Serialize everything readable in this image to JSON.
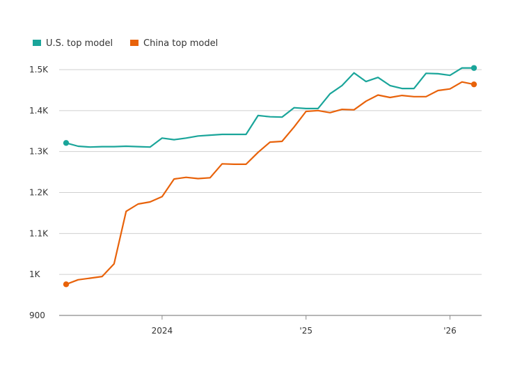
{
  "chart_data": {
    "type": "line",
    "title": "",
    "xlabel": "",
    "ylabel": "",
    "ylim": [
      900,
      1500
    ],
    "xlim": [
      "2023-05",
      "2026-03"
    ],
    "grid": true,
    "legend": "top-left",
    "y_ticks": [
      {
        "value": 1500,
        "label": "1.5K"
      },
      {
        "value": 1400,
        "label": "1.4K"
      },
      {
        "value": 1300,
        "label": "1.3K"
      },
      {
        "value": 1200,
        "label": "1.2K"
      },
      {
        "value": 1100,
        "label": "1.1K"
      },
      {
        "value": 1000,
        "label": "1K"
      },
      {
        "value": 900,
        "label": "900"
      }
    ],
    "x_ticks": [
      {
        "date": "2024-01",
        "label": "2024"
      },
      {
        "date": "2025-01",
        "label": "'25"
      },
      {
        "date": "2026-01",
        "label": "'26"
      }
    ],
    "series": [
      {
        "name": "U.S. top model",
        "color": "#1aa59a",
        "points": [
          [
            "2023-05",
            1321
          ],
          [
            "2023-06",
            1313
          ],
          [
            "2023-07",
            1311
          ],
          [
            "2023-08",
            1312
          ],
          [
            "2023-09",
            1312
          ],
          [
            "2023-10",
            1313
          ],
          [
            "2023-11",
            1312
          ],
          [
            "2023-12",
            1311
          ],
          [
            "2024-01",
            1333
          ],
          [
            "2024-02",
            1329
          ],
          [
            "2024-03",
            1333
          ],
          [
            "2024-04",
            1338
          ],
          [
            "2024-05",
            1340
          ],
          [
            "2024-06",
            1342
          ],
          [
            "2024-07",
            1342
          ],
          [
            "2024-08",
            1342
          ],
          [
            "2024-09",
            1388
          ],
          [
            "2024-10",
            1385
          ],
          [
            "2024-11",
            1384
          ],
          [
            "2024-12",
            1407
          ],
          [
            "2025-01",
            1405
          ],
          [
            "2025-02",
            1405
          ],
          [
            "2025-03",
            1441
          ],
          [
            "2025-04",
            1461
          ],
          [
            "2025-05",
            1492
          ],
          [
            "2025-06",
            1471
          ],
          [
            "2025-07",
            1481
          ],
          [
            "2025-08",
            1461
          ],
          [
            "2025-09",
            1454
          ],
          [
            "2025-10",
            1454
          ],
          [
            "2025-11",
            1491
          ],
          [
            "2025-12",
            1490
          ],
          [
            "2026-01",
            1486
          ],
          [
            "2026-02",
            1504
          ],
          [
            "2026-03",
            1504
          ]
        ]
      },
      {
        "name": "China top model",
        "color": "#e8620a",
        "points": [
          [
            "2023-05",
            976
          ],
          [
            "2023-06",
            987
          ],
          [
            "2023-07",
            991
          ],
          [
            "2023-08",
            995
          ],
          [
            "2023-09",
            1026
          ],
          [
            "2023-10",
            1154
          ],
          [
            "2023-11",
            1172
          ],
          [
            "2023-12",
            1177
          ],
          [
            "2024-01",
            1190
          ],
          [
            "2024-02",
            1233
          ],
          [
            "2024-03",
            1237
          ],
          [
            "2024-04",
            1234
          ],
          [
            "2024-05",
            1236
          ],
          [
            "2024-06",
            1270
          ],
          [
            "2024-07",
            1269
          ],
          [
            "2024-08",
            1269
          ],
          [
            "2024-09",
            1298
          ],
          [
            "2024-10",
            1323
          ],
          [
            "2024-11",
            1325
          ],
          [
            "2024-12",
            1360
          ],
          [
            "2025-01",
            1398
          ],
          [
            "2025-02",
            1400
          ],
          [
            "2025-03",
            1395
          ],
          [
            "2025-04",
            1403
          ],
          [
            "2025-05",
            1402
          ],
          [
            "2025-06",
            1423
          ],
          [
            "2025-07",
            1438
          ],
          [
            "2025-08",
            1432
          ],
          [
            "2025-09",
            1437
          ],
          [
            "2025-10",
            1434
          ],
          [
            "2025-11",
            1434
          ],
          [
            "2025-12",
            1449
          ],
          [
            "2026-01",
            1453
          ],
          [
            "2026-02",
            1470
          ],
          [
            "2026-03",
            1464
          ]
        ]
      }
    ]
  }
}
